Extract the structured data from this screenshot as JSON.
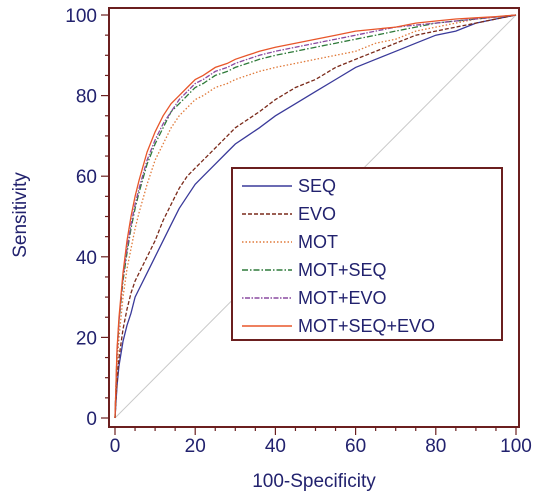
{
  "chart_data": {
    "type": "line",
    "title": "",
    "xlabel": "100-Specificity",
    "ylabel": "Sensitivity",
    "xlim": [
      0,
      100
    ],
    "ylim": [
      0,
      100
    ],
    "x_ticks": [
      0,
      20,
      40,
      60,
      80,
      100
    ],
    "y_ticks": [
      0,
      20,
      40,
      60,
      80,
      100
    ],
    "grid": false,
    "diagonal_reference": true,
    "legend_position": "center-right",
    "colors": {
      "frame": "#6b1f1f",
      "axis_text": "#22226e",
      "diagonal": "#c8c8c8"
    },
    "series": [
      {
        "name": "SEQ",
        "color": "#3a3a9a",
        "dash": "",
        "x": [
          0,
          0.5,
          1,
          2,
          3,
          4,
          5,
          6,
          8,
          10,
          12,
          14,
          16,
          18,
          20,
          22,
          25,
          28,
          30,
          33,
          36,
          40,
          45,
          50,
          55,
          60,
          65,
          70,
          75,
          80,
          85,
          90,
          95,
          100
        ],
        "y": [
          0,
          8,
          13,
          19,
          23,
          26,
          30,
          32,
          36,
          40,
          44,
          48,
          52,
          55,
          58,
          60,
          63,
          66,
          68,
          70,
          72,
          75,
          78,
          81,
          84,
          87,
          89,
          91,
          93,
          95,
          96,
          98,
          99,
          100
        ]
      },
      {
        "name": "EVO",
        "color": "#7a2a1a",
        "dash": "4,2",
        "x": [
          0,
          0.5,
          1,
          2,
          3,
          4,
          5,
          6,
          8,
          10,
          12,
          14,
          16,
          18,
          20,
          22,
          25,
          28,
          30,
          33,
          36,
          40,
          45,
          50,
          55,
          60,
          65,
          70,
          75,
          80,
          85,
          90,
          95,
          100
        ],
        "y": [
          0,
          9,
          15,
          22,
          27,
          31,
          34,
          36,
          40,
          44,
          49,
          53,
          57,
          60,
          62,
          64,
          67,
          70,
          72,
          74,
          76,
          79,
          82,
          84,
          87,
          89,
          91,
          93,
          95,
          96,
          97,
          98,
          99,
          100
        ]
      },
      {
        "name": "MOT",
        "color": "#e07a3a",
        "dash": "1.5,2",
        "x": [
          0,
          0.5,
          1,
          2,
          3,
          4,
          5,
          6,
          8,
          10,
          12,
          14,
          16,
          18,
          20,
          22,
          25,
          28,
          30,
          33,
          36,
          40,
          45,
          50,
          55,
          60,
          65,
          70,
          75,
          80,
          85,
          90,
          95,
          100
        ],
        "y": [
          0,
          13,
          20,
          30,
          37,
          42,
          47,
          51,
          58,
          64,
          68,
          72,
          75,
          77,
          79,
          80,
          82,
          83,
          84,
          85,
          86,
          87,
          88,
          89,
          90,
          91,
          93,
          94,
          96,
          97,
          98,
          99,
          99.5,
          100
        ]
      },
      {
        "name": "MOT+SEQ",
        "color": "#2e7a3a",
        "dash": "6,2,1.5,2",
        "x": [
          0,
          0.5,
          1,
          2,
          3,
          4,
          5,
          6,
          8,
          10,
          12,
          14,
          16,
          18,
          20,
          22,
          25,
          28,
          30,
          33,
          36,
          40,
          45,
          50,
          55,
          60,
          65,
          70,
          75,
          80,
          85,
          90,
          95,
          100
        ],
        "y": [
          0,
          16,
          24,
          34,
          41,
          47,
          52,
          56,
          63,
          68,
          72,
          76,
          78,
          80,
          82,
          83,
          85,
          86,
          87,
          88,
          89,
          90,
          91,
          92,
          93,
          94,
          95,
          96,
          97,
          98,
          98.5,
          99,
          99.5,
          100
        ]
      },
      {
        "name": "MOT+EVO",
        "color": "#8a4aa0",
        "dash": "1.5,1.5,5,1.5",
        "x": [
          0,
          0.5,
          1,
          2,
          3,
          4,
          5,
          6,
          8,
          10,
          12,
          14,
          16,
          18,
          20,
          22,
          25,
          28,
          30,
          33,
          36,
          40,
          45,
          50,
          55,
          60,
          65,
          70,
          75,
          80,
          85,
          90,
          95,
          100
        ],
        "y": [
          0,
          16,
          24,
          35,
          42,
          48,
          53,
          57,
          64,
          69,
          73,
          76,
          79,
          81,
          83,
          84,
          86,
          87,
          88,
          89,
          90,
          91,
          92,
          93,
          94,
          95,
          96,
          97,
          97.5,
          98,
          98.5,
          99,
          99.5,
          100
        ]
      },
      {
        "name": "MOT+SEQ+EVO",
        "color": "#e8562a",
        "dash": "",
        "x": [
          0,
          0.5,
          1,
          2,
          3,
          4,
          5,
          6,
          8,
          10,
          12,
          14,
          16,
          18,
          20,
          22,
          25,
          28,
          30,
          33,
          36,
          40,
          45,
          50,
          55,
          60,
          65,
          70,
          75,
          80,
          85,
          90,
          95,
          100
        ],
        "y": [
          0,
          17,
          25,
          36,
          44,
          50,
          55,
          59,
          66,
          71,
          75,
          78,
          80,
          82,
          84,
          85,
          87,
          88,
          89,
          90,
          91,
          92,
          93,
          94,
          95,
          96,
          96.5,
          97,
          98,
          98.5,
          99,
          99.3,
          99.6,
          100
        ]
      }
    ]
  }
}
